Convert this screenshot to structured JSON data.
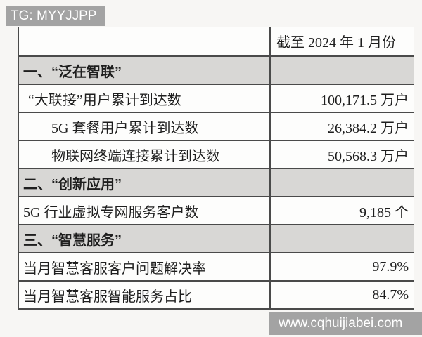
{
  "watermarks": {
    "top": "TG: MYYJJPP",
    "bottom": "www.cqhuijiabei.com"
  },
  "table": {
    "header": {
      "label": "",
      "value": "截至 2024 年 1 月份"
    },
    "rows": [
      {
        "type": "section",
        "indent": 0,
        "label": "一、“泛在智联”",
        "value": ""
      },
      {
        "type": "data",
        "indent": 1,
        "label": "“大联接”用户累计到达数",
        "value": "100,171.5 万户"
      },
      {
        "type": "data",
        "indent": 2,
        "label": "5G 套餐用户累计到达数",
        "value": "26,384.2 万户"
      },
      {
        "type": "data",
        "indent": 2,
        "label": "物联网终端连接累计到达数",
        "value": "50,568.3 万户"
      },
      {
        "type": "section",
        "indent": 0,
        "label": "二、“创新应用”",
        "value": ""
      },
      {
        "type": "data",
        "indent": 0,
        "label": "5G 行业虚拟专网服务客户数",
        "value": "9,185 个"
      },
      {
        "type": "section",
        "indent": 0,
        "label": "三、“智慧服务”",
        "value": ""
      },
      {
        "type": "data",
        "indent": 0,
        "label": "当月智慧客服客户问题解决率",
        "value": "97.9%"
      },
      {
        "type": "data",
        "indent": 0,
        "label": "当月智慧客服智能服务占比",
        "value": "84.7%"
      }
    ]
  },
  "colors": {
    "section_row_bg": "#d8d7d5",
    "watermark_bg": "#a3a3a3",
    "border": "#4a4a4a",
    "page_bg": "#f7f6f4",
    "cell_bg": "#fdfdfc"
  }
}
